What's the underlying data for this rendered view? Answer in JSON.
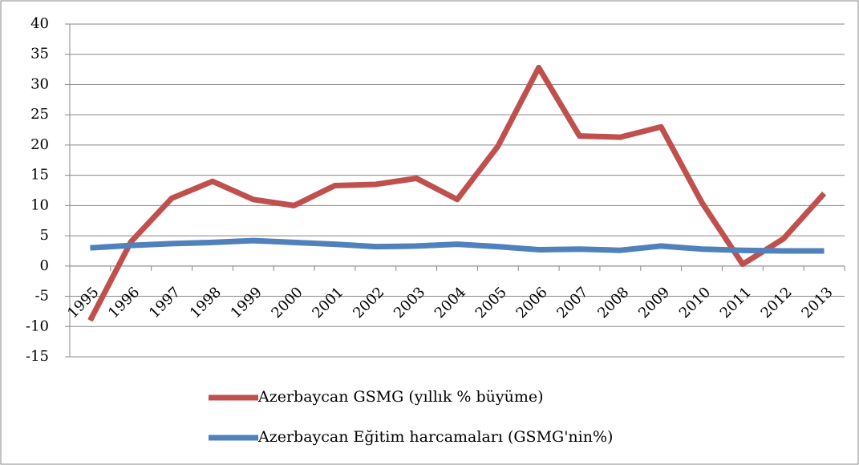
{
  "chart_data": {
    "type": "line",
    "categories": [
      "1995",
      "1996",
      "1997",
      "1998",
      "1999",
      "2000",
      "2001",
      "2002",
      "2003",
      "2004",
      "2005",
      "2006",
      "2007",
      "2008",
      "2009",
      "2010",
      "2011",
      "2012",
      "2013"
    ],
    "series": [
      {
        "name": "Azerbaycan GSMG (yıllık % büyüme)",
        "color": "#c0504d",
        "values": [
          -9.0,
          4.0,
          11.2,
          14.0,
          11.0,
          10.0,
          13.3,
          13.5,
          14.5,
          11.0,
          19.8,
          32.8,
          21.5,
          21.3,
          23.0,
          10.5,
          0.3,
          4.5,
          12.0
        ]
      },
      {
        "name": "Azerbaycan Eğitim harcamaları (GSMG'nin%)",
        "color": "#4f81bd",
        "values": [
          3.0,
          3.4,
          3.7,
          3.9,
          4.2,
          3.9,
          3.6,
          3.2,
          3.3,
          3.6,
          3.2,
          2.7,
          2.8,
          2.6,
          3.3,
          2.8,
          2.6,
          2.5,
          2.5
        ]
      }
    ],
    "ylim": [
      -15,
      40
    ],
    "yticks": [
      -15,
      -10,
      -5,
      0,
      5,
      10,
      15,
      20,
      25,
      30,
      35,
      40
    ],
    "grid": true,
    "legend": "bottom"
  }
}
